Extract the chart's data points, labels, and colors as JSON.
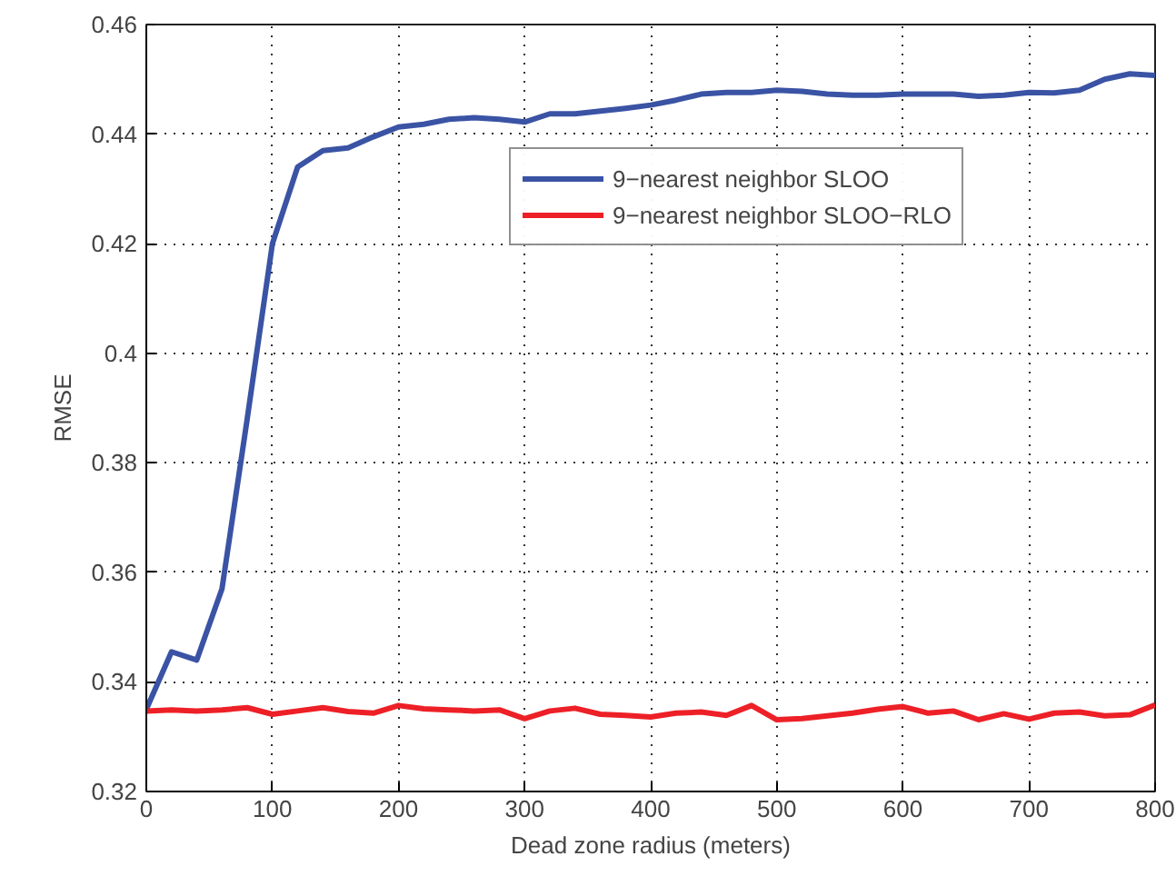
{
  "chart_data": {
    "type": "line",
    "xlabel": "Dead zone radius (meters)",
    "ylabel": "RMSE",
    "x": [
      0,
      20,
      40,
      60,
      80,
      100,
      120,
      140,
      160,
      180,
      200,
      220,
      240,
      260,
      280,
      300,
      320,
      340,
      360,
      380,
      400,
      420,
      440,
      460,
      480,
      500,
      520,
      540,
      560,
      580,
      600,
      620,
      640,
      660,
      680,
      700,
      720,
      740,
      760,
      780,
      800
    ],
    "series": [
      {
        "name": "9−nearest neighbor SLOO",
        "color": "#3a53a4",
        "values": [
          0.335,
          0.3455,
          0.344,
          0.357,
          0.388,
          0.42,
          0.434,
          0.437,
          0.4375,
          0.4395,
          0.4413,
          0.4418,
          0.4427,
          0.443,
          0.4427,
          0.4422,
          0.4437,
          0.4437,
          0.4442,
          0.4447,
          0.4453,
          0.4462,
          0.4473,
          0.4476,
          0.4476,
          0.448,
          0.4478,
          0.4473,
          0.4471,
          0.4471,
          0.4473,
          0.4473,
          0.4473,
          0.4469,
          0.4471,
          0.4476,
          0.4475,
          0.448,
          0.45,
          0.451,
          0.4507
        ]
      },
      {
        "name": "9−nearest neighbor SLOO−RLO",
        "color": "#ed2027",
        "values": [
          0.3347,
          0.3349,
          0.3347,
          0.3349,
          0.3353,
          0.3341,
          0.3347,
          0.3353,
          0.3346,
          0.3343,
          0.3357,
          0.3351,
          0.3349,
          0.3347,
          0.3349,
          0.3333,
          0.3347,
          0.3352,
          0.3341,
          0.3339,
          0.3336,
          0.3343,
          0.3345,
          0.3339,
          0.3357,
          0.3331,
          0.3333,
          0.3338,
          0.3343,
          0.335,
          0.3355,
          0.3343,
          0.3347,
          0.3331,
          0.3342,
          0.3332,
          0.3343,
          0.3345,
          0.3338,
          0.334,
          0.3358
        ]
      }
    ],
    "xlim": [
      0,
      800
    ],
    "ylim": [
      0.32,
      0.46
    ],
    "xticks": [
      0,
      100,
      200,
      300,
      400,
      500,
      600,
      700,
      800
    ],
    "yticks": [
      0.32,
      0.34,
      0.36,
      0.38,
      0.4,
      0.42,
      0.44,
      0.46
    ],
    "grid": true,
    "legend": "top right",
    "line_style": "solid",
    "marker": "none"
  }
}
